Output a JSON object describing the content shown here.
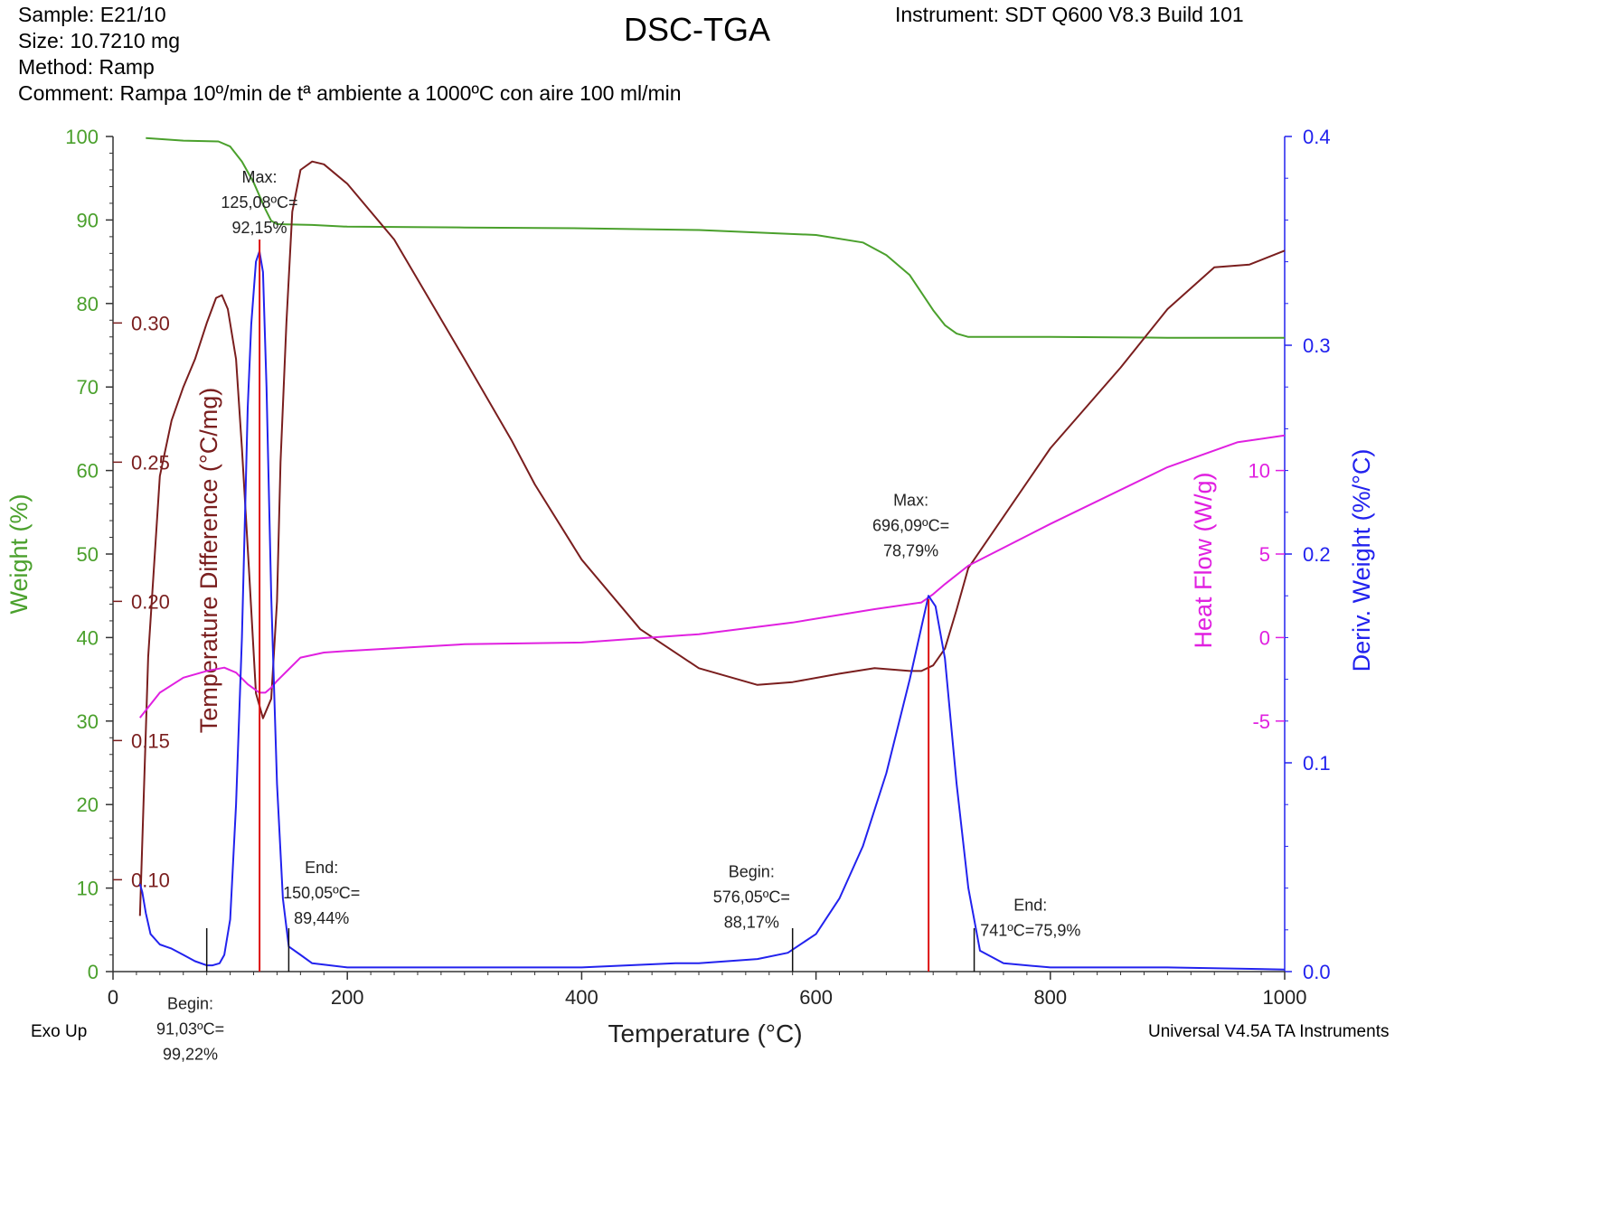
{
  "header": {
    "sample": "Sample: E21/10",
    "size": "Size:  10.7210 mg",
    "method": "Method: Ramp",
    "comment": "Comment: Rampa 10º/min de tª ambiente a 1000ºC con aire 100 ml/min",
    "title": "DSC-TGA",
    "instrument": "Instrument: SDT Q600 V8.3 Build 101"
  },
  "footer": {
    "exo": "Exo Up",
    "software": "Universal V4.5A TA Instruments"
  },
  "colors": {
    "weight": "#4aa02c",
    "temp_diff": "#7a1e1e",
    "heat_flow": "#e020e0",
    "deriv": "#2222ee",
    "marker": "#dd1111",
    "axis": "#333333"
  },
  "chart_data": {
    "type": "line",
    "title": "DSC-TGA",
    "xlabel": "Temperature (°C)",
    "xlim": [
      0,
      1000
    ],
    "x_ticks": [
      "0",
      "200",
      "400",
      "600",
      "800",
      "1000"
    ],
    "axes": {
      "weight": {
        "label": "Weight (%)",
        "lim": [
          0,
          100
        ],
        "ticks": [
          "0",
          "10",
          "20",
          "30",
          "40",
          "50",
          "60",
          "70",
          "80",
          "90",
          "100"
        ]
      },
      "temp_diff": {
        "label": "Temperature Difference (°C/mg)",
        "lim": [
          0.067,
          0.367
        ],
        "ticks": [
          "0.10",
          "0.15",
          "0.20",
          "0.25",
          "0.30"
        ]
      },
      "heat_flow": {
        "label": "Heat Flow (W/g)",
        "lim": [
          -20,
          30
        ],
        "ticks": [
          "-5",
          "0",
          "5",
          "10"
        ]
      },
      "deriv": {
        "label": "Deriv. Weight (%/°C)",
        "lim": [
          0,
          0.4
        ],
        "ticks": [
          "0.0",
          "0.1",
          "0.2",
          "0.3",
          "0.4"
        ]
      }
    },
    "series": [
      {
        "key": "weight",
        "axis": "weight",
        "x": [
          28,
          60,
          90,
          100,
          110,
          120,
          130,
          135,
          140,
          170,
          200,
          300,
          400,
          500,
          600,
          640,
          660,
          680,
          700,
          710,
          720,
          730,
          800,
          900,
          1000
        ],
        "y": [
          99.8,
          99.5,
          99.4,
          98.8,
          97,
          94.5,
          91.3,
          89.9,
          89.5,
          89.4,
          89.2,
          89.1,
          89.0,
          88.8,
          88.2,
          87.3,
          85.8,
          83.4,
          79.2,
          77.4,
          76.4,
          76.0,
          76.0,
          75.9,
          75.9
        ]
      },
      {
        "key": "temp_diff",
        "axis": "temp_diff",
        "x": [
          23,
          30,
          40,
          50,
          60,
          70,
          80,
          88,
          93,
          98,
          105,
          110,
          116,
          122,
          128,
          135,
          140,
          143,
          148,
          153,
          160,
          170,
          180,
          200,
          240,
          300,
          340,
          360,
          400,
          450,
          500,
          550,
          580,
          620,
          650,
          680,
          690,
          700,
          710,
          720,
          730,
          800,
          860,
          900,
          940,
          970,
          1000
        ],
        "y": [
          0.087,
          0.18,
          0.245,
          0.265,
          0.277,
          0.287,
          0.3,
          0.309,
          0.31,
          0.305,
          0.287,
          0.255,
          0.212,
          0.167,
          0.158,
          0.165,
          0.2,
          0.25,
          0.3,
          0.34,
          0.355,
          0.358,
          0.357,
          0.35,
          0.33,
          0.287,
          0.258,
          0.242,
          0.215,
          0.19,
          0.176,
          0.17,
          0.171,
          0.174,
          0.176,
          0.175,
          0.175,
          0.177,
          0.183,
          0.197,
          0.212,
          0.255,
          0.284,
          0.305,
          0.32,
          0.321,
          0.326
        ]
      },
      {
        "key": "heat_flow",
        "axis": "heat_flow",
        "x": [
          23,
          40,
          60,
          80,
          95,
          105,
          115,
          125,
          130,
          135,
          140,
          150,
          160,
          180,
          200,
          250,
          300,
          400,
          500,
          580,
          650,
          690,
          700,
          710,
          730,
          800,
          900,
          960,
          1000
        ],
        "y": [
          -4.8,
          -3.3,
          -2.4,
          -2.0,
          -1.8,
          -2.1,
          -2.8,
          -3.3,
          -3.3,
          -3.0,
          -2.6,
          -1.9,
          -1.2,
          -0.9,
          -0.8,
          -0.6,
          -0.4,
          -0.3,
          0.2,
          0.9,
          1.7,
          2.1,
          2.6,
          3.2,
          4.3,
          6.8,
          10.2,
          11.7,
          12.1
        ]
      },
      {
        "key": "deriv",
        "axis": "deriv",
        "x": [
          23,
          25,
          28,
          32,
          40,
          45,
          50,
          60,
          70,
          80,
          85,
          91,
          95,
          100,
          105,
          110,
          115,
          118,
          122,
          125,
          128,
          131,
          135,
          140,
          145,
          150,
          160,
          170,
          200,
          300,
          400,
          480,
          500,
          550,
          576,
          600,
          620,
          640,
          660,
          680,
          690,
          696,
          702,
          710,
          720,
          730,
          740,
          760,
          800,
          900,
          1000
        ],
        "y": [
          0.042,
          0.038,
          0.028,
          0.018,
          0.013,
          0.012,
          0.011,
          0.008,
          0.005,
          0.003,
          0.003,
          0.004,
          0.008,
          0.025,
          0.08,
          0.16,
          0.27,
          0.31,
          0.34,
          0.345,
          0.335,
          0.28,
          0.18,
          0.09,
          0.035,
          0.012,
          0.008,
          0.004,
          0.002,
          0.002,
          0.002,
          0.004,
          0.004,
          0.006,
          0.009,
          0.018,
          0.035,
          0.06,
          0.095,
          0.14,
          0.165,
          0.18,
          0.175,
          0.15,
          0.09,
          0.04,
          0.01,
          0.004,
          0.002,
          0.002,
          0.001
        ]
      }
    ],
    "markers": [
      {
        "x": 125.08,
        "color": "marker",
        "top_axis": "temp_diff",
        "top": 0.33
      },
      {
        "x": 696.09,
        "color": "marker",
        "top_axis": "heat_flow",
        "top": 2.3
      }
    ],
    "ticks": [
      {
        "x": 80
      },
      {
        "x": 150
      },
      {
        "x": 580
      },
      {
        "x": 735
      }
    ],
    "annotations": [
      {
        "lines": [
          "Max:",
          "125,08ºC=",
          "92,15%"
        ],
        "x": 125,
        "y": 94.5
      },
      {
        "lines": [
          "End:",
          "150,05ºC=",
          "89,44%"
        ],
        "x": 178,
        "y": 11.8
      },
      {
        "lines": [
          "Begin:",
          "576,05ºC=",
          "88,17%"
        ],
        "x": 545,
        "y": 11.3
      },
      {
        "lines": [
          "Max:",
          "696,09ºC=",
          "78,79%"
        ],
        "x": 681,
        "y": 55.8
      },
      {
        "lines": [
          "End:",
          "741ºC=75,9%"
        ],
        "x": 783,
        "y": 7.3
      },
      {
        "lines": [
          "Begin:",
          "91,03ºC=",
          "99,22%"
        ],
        "x": 66,
        "y": -4.5
      }
    ]
  }
}
